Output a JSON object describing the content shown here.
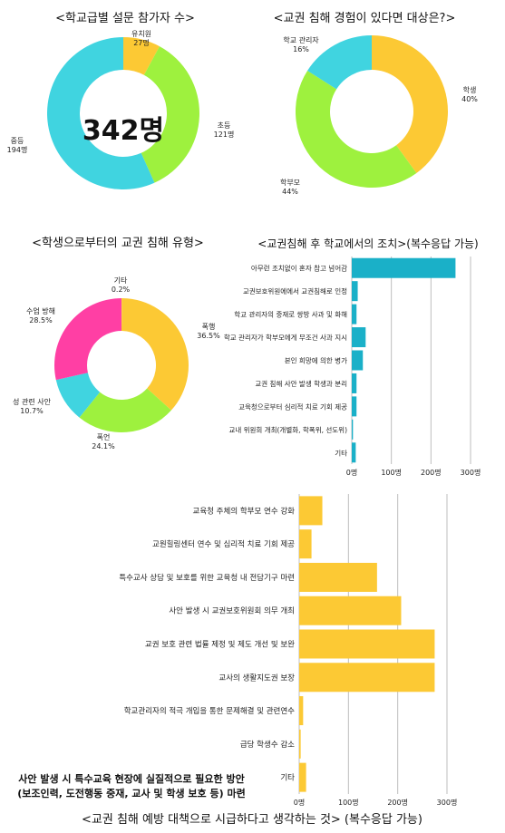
{
  "chart_data": [
    {
      "type": "pie",
      "title": "<학교급별 설문 참가자 수>",
      "center_label": "342명",
      "slices": [
        {
          "label": "유치원",
          "value": 27,
          "value_label": "27명",
          "color": "#fcc934"
        },
        {
          "label": "초등",
          "value": 121,
          "value_label": "121명",
          "color": "#9ef13e"
        },
        {
          "label": "중등",
          "value": 194,
          "value_label": "194명",
          "color": "#40d4e0"
        }
      ]
    },
    {
      "type": "pie",
      "title": "<교권 침해 경험이 있다면 대상은?>",
      "slices": [
        {
          "label": "학생",
          "value": 40,
          "value_label": "40%",
          "color": "#fcc934"
        },
        {
          "label": "학부모",
          "value": 44,
          "value_label": "44%",
          "color": "#9ef13e"
        },
        {
          "label": "학교 관리자",
          "value": 16,
          "value_label": "16%",
          "color": "#40d4e0"
        }
      ]
    },
    {
      "type": "pie",
      "title": "<학생으로부터의 교권 침해 유형>",
      "slices": [
        {
          "label": "기타",
          "value": 0.2,
          "value_label": "0.2%",
          "color": "#fcc934"
        },
        {
          "label": "폭행",
          "value": 36.5,
          "value_label": "36.5%",
          "color": "#fcc934"
        },
        {
          "label": "폭언",
          "value": 24.1,
          "value_label": "24.1%",
          "color": "#9ef13e"
        },
        {
          "label": "성 관련 사안",
          "value": 10.7,
          "value_label": "10.7%",
          "color": "#40d4e0"
        },
        {
          "label": "수업 방해",
          "value": 28.5,
          "value_label": "28.5%",
          "color": "#ff3fa4"
        }
      ]
    },
    {
      "type": "bar",
      "orientation": "horizontal",
      "title": "<교권침해 후 학교에서의 조치>(복수응답 가능)",
      "color": "#1ab0c8",
      "categories": [
        "아무런 조치없이 혼자 참고 넘어감",
        "교권보호위원에에서 교권침해로 인정",
        "학교 관리자의 중재로 쌍방 사과 및 화해",
        "학교 관리자가 학부모에게 무조건 사과 지시",
        "본인 희망에 의한 병가",
        "교권 침해 사안 발생 학생과 분리",
        "교육청으로부터 심리적 치료 기회 제공",
        "교내 위원회 개최(개별화, 학폭위, 선도위)",
        "기타"
      ],
      "values": [
        262,
        15,
        12,
        35,
        28,
        12,
        12,
        3,
        10
      ],
      "xlim": [
        0,
        300
      ],
      "xticks": [
        "0명",
        "100명",
        "200명",
        "300명"
      ]
    },
    {
      "type": "bar",
      "orientation": "horizontal",
      "title": "<교권 침해 예방 대책으로 시급하다고 생각하는 것> (복수응답 가능)",
      "color": "#fcc934",
      "categories": [
        "교육청 주체의 학부모 연수 강화",
        "교원힐링센터 연수 및 심리적 치료 기회 제공",
        "특수교사 상담 및 보호를 위한 교육청 내 전담기구 마련",
        "사안 발생 시 교권보호위원회 의무 개최",
        "교권 보호 관련 법률 제정 및 제도 개선 및 보완",
        "교사의 생활지도권 보장",
        "학교관리자의 적극 개입을 통한 문제해결 및 관련연수",
        "급당 학생수 감소",
        "기타"
      ],
      "values": [
        47,
        25,
        158,
        207,
        275,
        275,
        8,
        3,
        14
      ],
      "xlim": [
        0,
        300
      ],
      "xticks": [
        "0명",
        "100명",
        "200명",
        "300명"
      ],
      "annotation": [
        "사안 발생 시 특수교육 현장에 실질적으로 필요한 방안",
        "(보조인력, 도전행동 중재, 교사 및 학생 보호 등) 마련"
      ]
    }
  ]
}
